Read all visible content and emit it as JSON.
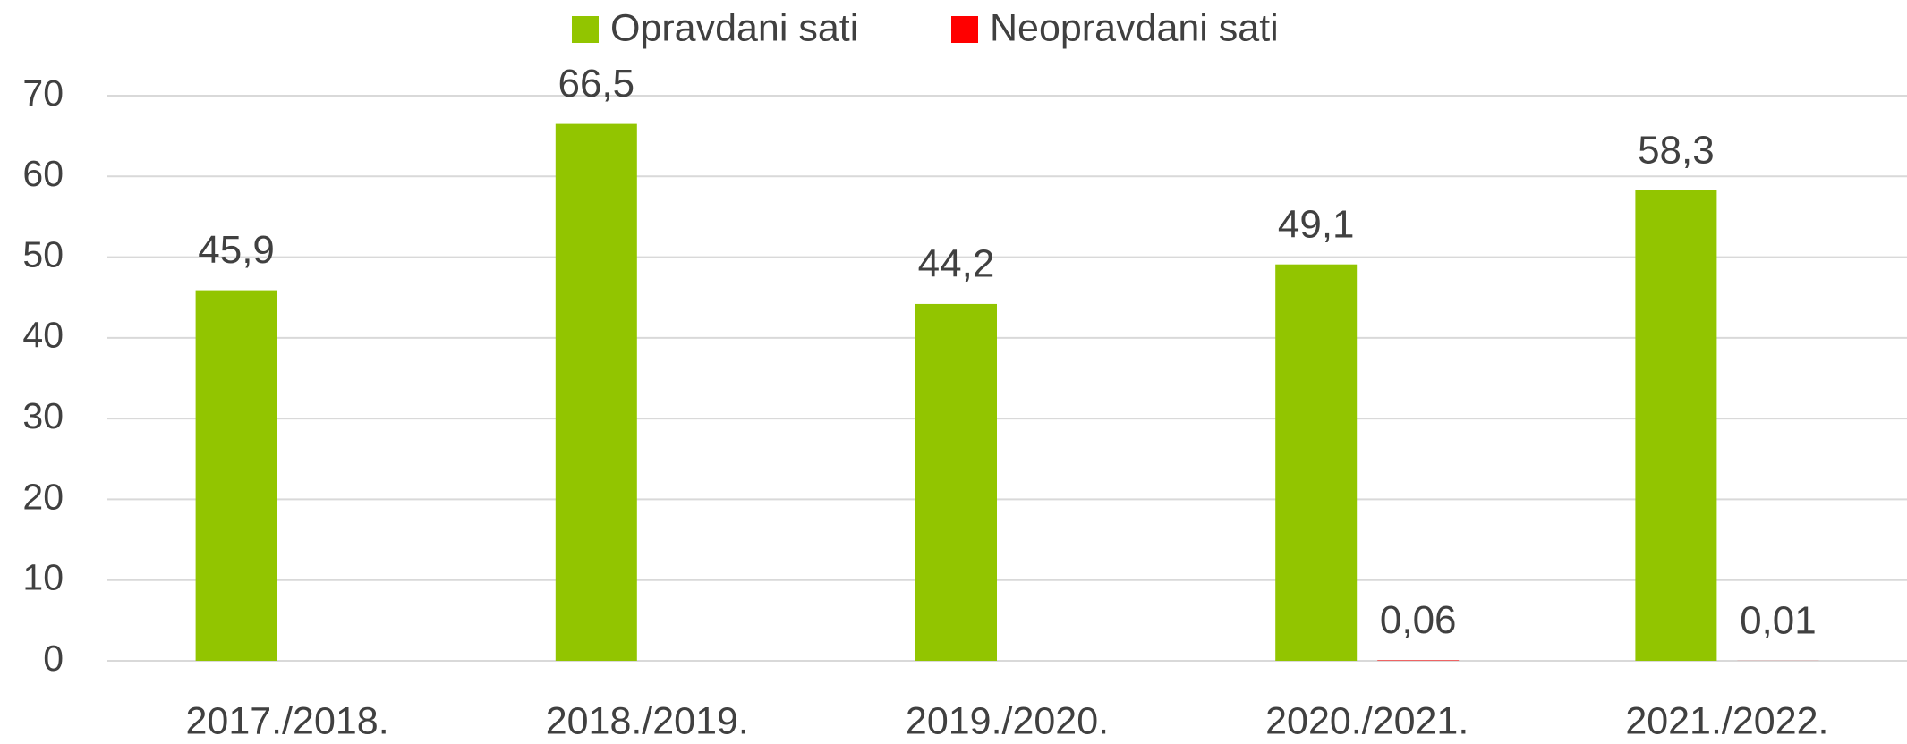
{
  "chart_data": {
    "type": "bar",
    "categories": [
      "2017./2018.",
      "2018./2019.",
      "2019./2020.",
      "2020./2021.",
      "2021./2022."
    ],
    "series": [
      {
        "name": "Opravdani sati",
        "color": "#92c500",
        "values": [
          45.9,
          66.5,
          44.2,
          49.1,
          58.3
        ],
        "value_labels": [
          "45,9",
          "66,5",
          "44,2",
          "49,1",
          "58,3"
        ]
      },
      {
        "name": "Neopravdani sati",
        "color": "#ff0000",
        "values": [
          null,
          null,
          null,
          0.06,
          0.01
        ],
        "value_labels": [
          null,
          null,
          null,
          "0,06",
          "0,01"
        ]
      }
    ],
    "ylim": [
      0,
      70
    ],
    "yticks": [
      0,
      10,
      20,
      30,
      40,
      50,
      60,
      70
    ],
    "grid": true,
    "legend": "top"
  }
}
